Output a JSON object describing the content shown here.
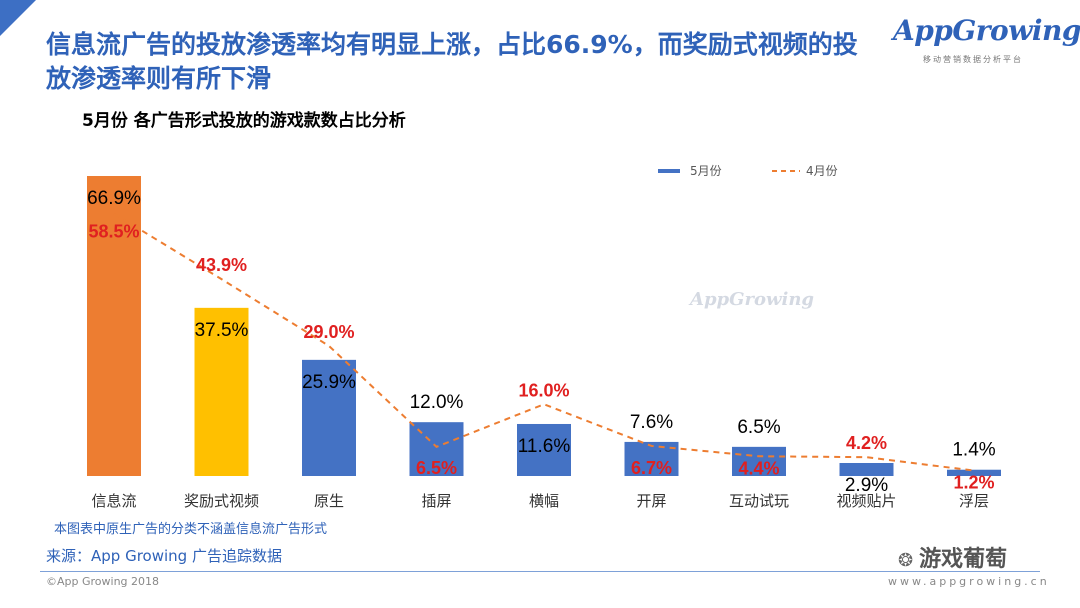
{
  "headline": "信息流广告的投放渗透率均有明显上涨，占比66.9%，而奖励式视频的投放渗透率则有所下滑",
  "logo": {
    "name": "AppGrowing",
    "tagline": "移动营销数据分析平台"
  },
  "watermark": "AppGrowing",
  "note": "本图表中原生广告的分类不涵盖信息流广告形式",
  "source": "来源：App Growing 广告追踪数据",
  "copyright": "©App Growing 2018",
  "website": "www.appgrowing.cn",
  "wechat": "游戏葡萄",
  "colors": {
    "accent": "#2f62b8",
    "bar_blue": "#4472c4",
    "bar_orange": "#ed7d31",
    "bar_yellow": "#ffc000",
    "line": "#ed7d31",
    "label_red": "#e02020"
  },
  "chart_data": {
    "type": "bar",
    "title": "5月份 各广告形式投放的游戏款数占比分析",
    "categories": [
      "信息流",
      "奖励式视频",
      "原生",
      "插屏",
      "横幅",
      "开屏",
      "互动试玩",
      "视频贴片",
      "浮层"
    ],
    "series": [
      {
        "name": "5月份",
        "type": "bar",
        "values": [
          66.9,
          37.5,
          25.9,
          12.0,
          11.6,
          7.6,
          6.5,
          2.9,
          1.4
        ],
        "labels": [
          "66.9%",
          "37.5%",
          "25.9%",
          "12.0%",
          "11.6%",
          "7.6%",
          "6.5%",
          "2.9%",
          "1.4%"
        ]
      },
      {
        "name": "4月份",
        "type": "line",
        "style": "dashed",
        "values": [
          58.5,
          43.9,
          29.0,
          6.5,
          16.0,
          6.7,
          4.4,
          4.2,
          1.2
        ],
        "labels": [
          "58.5%",
          "43.9%",
          "29.0%",
          "6.5%",
          "16.0%",
          "6.7%",
          "4.4%",
          "4.2%",
          "1.2%"
        ]
      }
    ],
    "bar_colors": [
      "#ed7d31",
      "#ffc000",
      "#4472c4",
      "#4472c4",
      "#4472c4",
      "#4472c4",
      "#4472c4",
      "#4472c4",
      "#4472c4"
    ],
    "ylim": [
      0,
      70
    ],
    "legend": {
      "position": "top-right",
      "entries": [
        "5月份",
        "4月份"
      ]
    },
    "grid": false
  }
}
